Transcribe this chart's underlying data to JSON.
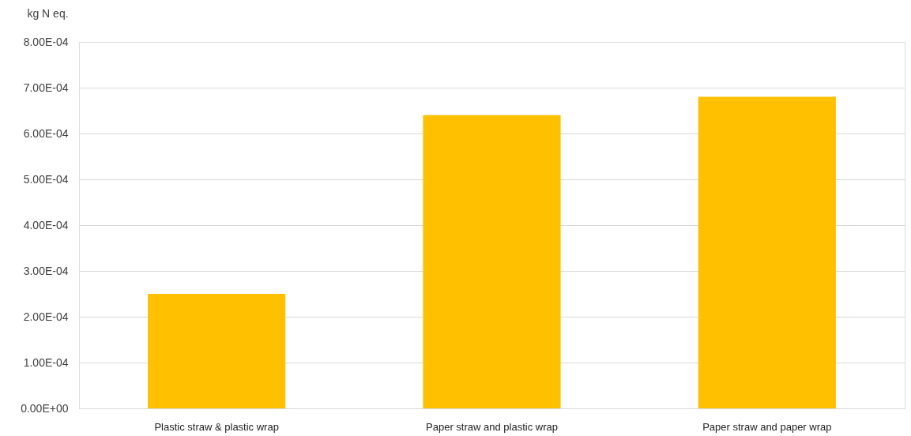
{
  "chart_data": {
    "type": "bar",
    "ylabel": "kg N eq.",
    "categories": [
      "Plastic straw & plastic wrap",
      "Paper straw and plastic wrap",
      "Paper straw and paper wrap"
    ],
    "values": [
      0.00025,
      0.00064,
      0.00068
    ],
    "color": "#ffc000",
    "ylim": [
      0,
      0.0008
    ],
    "yticks": [
      {
        "value": 0,
        "label": "0.00E+00"
      },
      {
        "value": 0.0001,
        "label": "1.00E-04"
      },
      {
        "value": 0.0002,
        "label": "2.00E-04"
      },
      {
        "value": 0.0003,
        "label": "3.00E-04"
      },
      {
        "value": 0.0004,
        "label": "4.00E-04"
      },
      {
        "value": 0.0005,
        "label": "5.00E-04"
      },
      {
        "value": 0.0006,
        "label": "6.00E-04"
      },
      {
        "value": 0.0007,
        "label": "7.00E-04"
      },
      {
        "value": 0.0008,
        "label": "8.00E-04"
      }
    ],
    "grid": "y"
  }
}
